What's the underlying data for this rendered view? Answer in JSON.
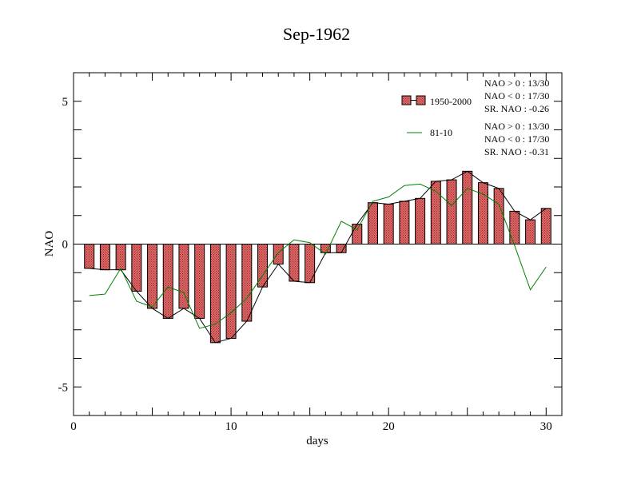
{
  "chart_data": {
    "type": "bar",
    "title": "Sep-1962",
    "xlabel": "days",
    "ylabel": "NAO",
    "xlim": [
      0,
      31
    ],
    "ylim": [
      -6,
      6
    ],
    "xticks": [
      0,
      10,
      20,
      30
    ],
    "yticks": [
      -5,
      0,
      5
    ],
    "x": [
      1,
      2,
      3,
      4,
      5,
      6,
      7,
      8,
      9,
      10,
      11,
      12,
      13,
      14,
      15,
      16,
      17,
      18,
      19,
      20,
      21,
      22,
      23,
      24,
      25,
      26,
      27,
      28,
      29,
      30
    ],
    "series": [
      {
        "name": "1950-2000",
        "kind": "bar",
        "color": "#e06666",
        "values": [
          -0.85,
          -0.9,
          -0.9,
          -1.65,
          -2.25,
          -2.6,
          -2.25,
          -2.6,
          -3.45,
          -3.3,
          -2.7,
          -1.5,
          -0.7,
          -1.3,
          -1.35,
          -0.3,
          -0.3,
          0.7,
          1.45,
          1.4,
          1.5,
          1.6,
          2.2,
          2.25,
          2.55,
          2.15,
          1.95,
          1.15,
          0.85,
          1.25
        ],
        "stats": [
          "NAO > 0 : 13/30",
          "NAO < 0 : 17/30",
          "SR. NAO : -0.26"
        ]
      },
      {
        "name": "81-10",
        "kind": "line",
        "color": "#008000",
        "values": [
          -1.8,
          -1.75,
          -0.85,
          -2.0,
          -2.2,
          -1.5,
          -1.7,
          -2.95,
          -2.8,
          -2.4,
          -1.9,
          -1.1,
          -0.3,
          0.15,
          0.05,
          -0.35,
          0.8,
          0.5,
          1.5,
          1.65,
          2.05,
          2.1,
          1.85,
          1.35,
          1.95,
          1.75,
          1.4,
          -0.05,
          -1.6,
          -0.8
        ],
        "stats": [
          "NAO > 0 : 13/30",
          "NAO < 0 : 17/30",
          "SR. NAO : -0.31"
        ]
      }
    ],
    "legend_position": "top-right",
    "grid": false
  }
}
